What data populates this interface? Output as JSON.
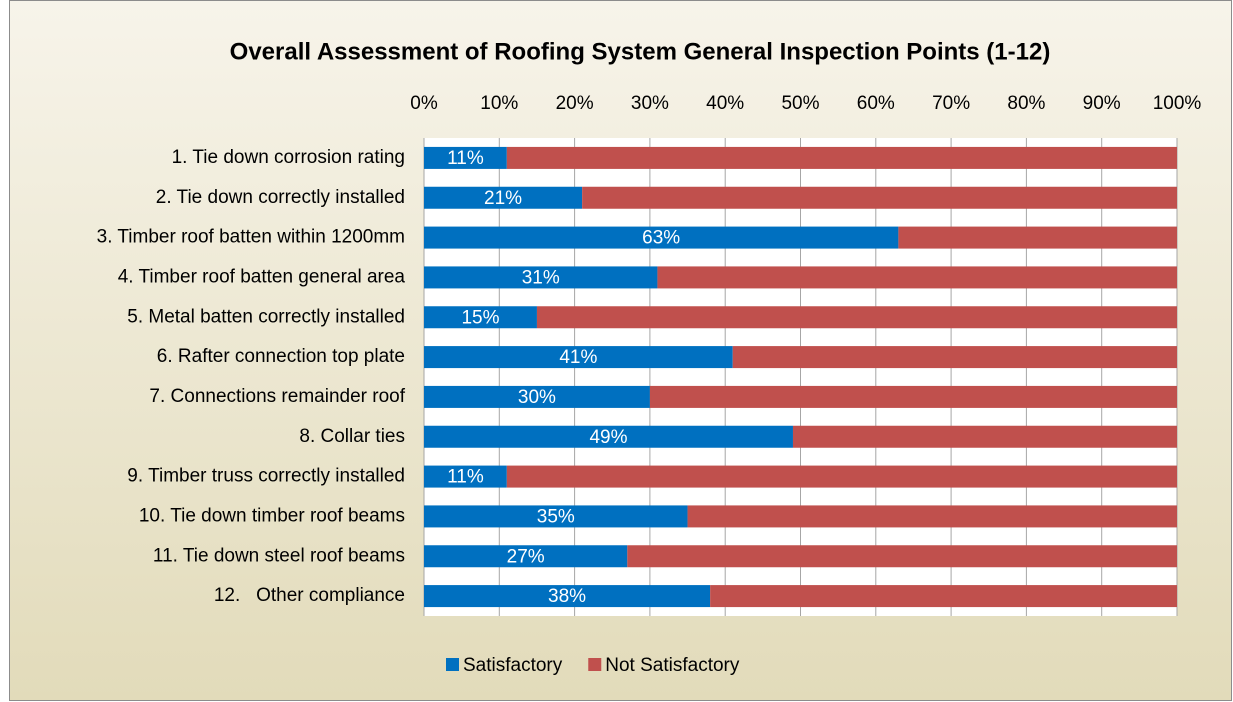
{
  "chart_data": {
    "type": "stacked_barh",
    "title": "Overall Assessment of Roofing System General Inspection Points (1-12)",
    "categories": [
      "1. Tie down corrosion rating",
      "2. Tie down correctly installed",
      "3. Timber roof batten within 1200mm",
      "4. Timber roof batten general area",
      "5. Metal batten correctly installed",
      "6. Rafter connection top plate",
      "7. Connections remainder roof",
      "8. Collar ties",
      "9. Timber truss correctly installed",
      "10. Tie down timber roof beams",
      "11. Tie down steel roof beams",
      "12.   Other compliance"
    ],
    "series": [
      {
        "name": "Satisfactory",
        "color": "#0070c0",
        "values": [
          11,
          21,
          63,
          31,
          15,
          41,
          30,
          49,
          11,
          35,
          27,
          38
        ],
        "value_labels": [
          "11%",
          "21%",
          "63%",
          "31%",
          "15%",
          "41%",
          "30%",
          "49%",
          "11%",
          "35%",
          "27%",
          "38%"
        ]
      },
      {
        "name": "Not Satisfactory",
        "color": "#c0504d",
        "values": [
          89,
          79,
          37,
          69,
          85,
          59,
          70,
          51,
          89,
          65,
          73,
          62
        ]
      }
    ],
    "xlim": [
      0,
      100
    ],
    "xticks": [
      {
        "value": 0,
        "label": "0%"
      },
      {
        "value": 10,
        "label": "10%"
      },
      {
        "value": 20,
        "label": "20%"
      },
      {
        "value": 30,
        "label": "30%"
      },
      {
        "value": 40,
        "label": "40%"
      },
      {
        "value": 50,
        "label": "50%"
      },
      {
        "value": 60,
        "label": "60%"
      },
      {
        "value": 70,
        "label": "70%"
      },
      {
        "value": 80,
        "label": "80%"
      },
      {
        "value": 90,
        "label": "90%"
      },
      {
        "value": 100,
        "label": "100%"
      }
    ],
    "grid": true,
    "legend": "bottom"
  }
}
